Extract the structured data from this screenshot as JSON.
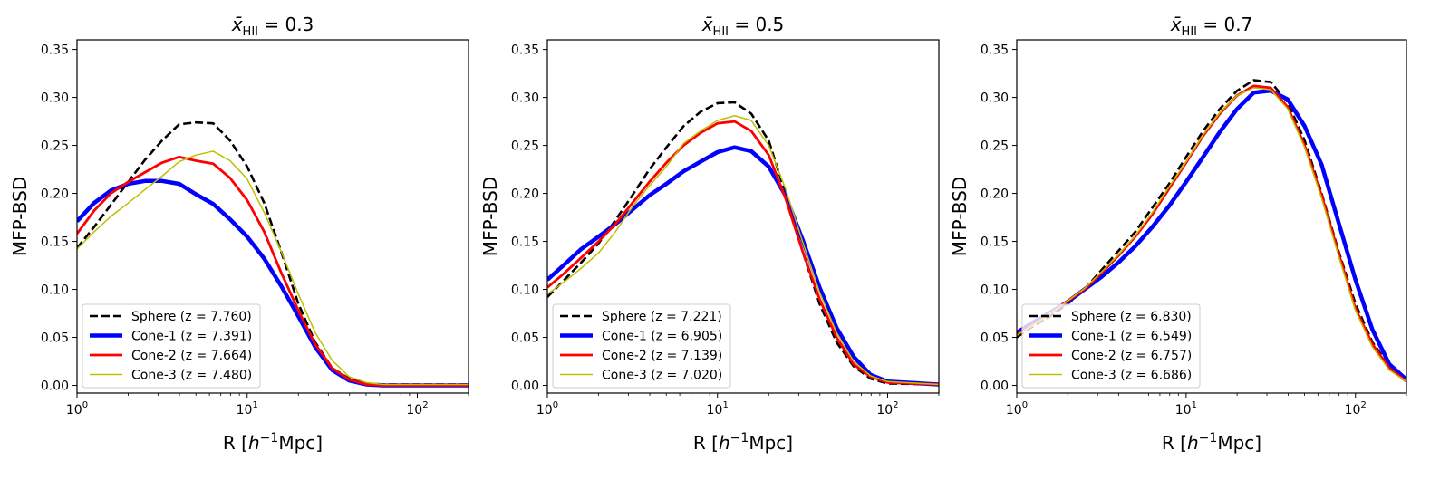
{
  "chart_data": [
    {
      "type": "line",
      "title_prefix": "x̄",
      "title_subscript": "HII",
      "title_value": " = 0.3",
      "xlabel_main": "R [",
      "xlabel_unit": "h",
      "xlabel_exp": "−1",
      "xlabel_end": "Mpc]",
      "ylabel": "MFP-BSD",
      "x_scale": "log",
      "xlim": [
        1,
        200
      ],
      "ylim": [
        -0.008,
        0.36
      ],
      "yticks": [
        "0.00",
        "0.05",
        "0.10",
        "0.15",
        "0.20",
        "0.25",
        "0.30",
        "0.35"
      ],
      "xticks": [
        {
          "base": "10",
          "exp": "0"
        },
        {
          "base": "10",
          "exp": "1"
        },
        {
          "base": "10",
          "exp": "2"
        }
      ],
      "grid": false,
      "legend_position": "lower-left",
      "series": [
        {
          "name": "Sphere (z = 7.760)",
          "color": "#000000",
          "style": "dashed",
          "width": 2.6,
          "x": [
            1,
            1.26,
            1.58,
            2,
            2.51,
            3.16,
            3.98,
            5.01,
            6.31,
            7.94,
            10,
            12.6,
            15.8,
            20,
            25.1,
            31.6,
            39.8,
            50.1,
            63.1,
            79.4,
            100,
            200
          ],
          "y": [
            0.143,
            0.165,
            0.188,
            0.212,
            0.235,
            0.255,
            0.272,
            0.274,
            0.273,
            0.255,
            0.228,
            0.19,
            0.14,
            0.085,
            0.045,
            0.018,
            0.007,
            0.002,
            0.001,
            0.001,
            0.001,
            0.001
          ]
        },
        {
          "name": "Cone-1 (z = 7.391)",
          "color": "#0000ff",
          "style": "solid",
          "width": 4.5,
          "x": [
            1,
            1.26,
            1.58,
            2,
            2.51,
            3.16,
            3.98,
            5.01,
            6.31,
            7.94,
            10,
            12.6,
            15.8,
            20,
            25.1,
            31.6,
            39.8,
            50.1,
            63.1,
            79.4,
            100,
            200
          ],
          "y": [
            0.171,
            0.19,
            0.203,
            0.21,
            0.213,
            0.213,
            0.21,
            0.199,
            0.189,
            0.173,
            0.155,
            0.132,
            0.104,
            0.072,
            0.04,
            0.016,
            0.005,
            0.001,
            0,
            0,
            0,
            0
          ]
        },
        {
          "name": "Cone-2 (z = 7.664)",
          "color": "#ff0000",
          "style": "solid",
          "width": 2.8,
          "x": [
            1,
            1.26,
            1.58,
            2,
            2.51,
            3.16,
            3.98,
            5.01,
            6.31,
            7.94,
            10,
            12.6,
            15.8,
            20,
            25.1,
            31.6,
            39.8,
            50.1,
            63.1,
            79.4,
            100,
            200
          ],
          "y": [
            0.158,
            0.182,
            0.2,
            0.212,
            0.222,
            0.232,
            0.238,
            0.234,
            0.231,
            0.216,
            0.193,
            0.16,
            0.118,
            0.078,
            0.043,
            0.018,
            0.006,
            0.001,
            0,
            0,
            0,
            0
          ]
        },
        {
          "name": "Cone-3 (z = 7.480)",
          "color": "#bfbf00",
          "style": "solid",
          "width": 1.5,
          "x": [
            1,
            1.26,
            1.58,
            2,
            2.51,
            3.16,
            3.98,
            5.01,
            6.31,
            7.94,
            10,
            12.6,
            15.8,
            20,
            25.1,
            31.6,
            39.8,
            50.1,
            63.1,
            79.4,
            100,
            200
          ],
          "y": [
            0.142,
            0.16,
            0.176,
            0.19,
            0.204,
            0.218,
            0.233,
            0.24,
            0.244,
            0.234,
            0.215,
            0.18,
            0.14,
            0.095,
            0.055,
            0.026,
            0.009,
            0.003,
            0.001,
            0.001,
            0.001,
            0.001
          ]
        }
      ]
    },
    {
      "type": "line",
      "title_prefix": "x̄",
      "title_subscript": "HII",
      "title_value": " = 0.5",
      "xlabel_main": "R [",
      "xlabel_unit": "h",
      "xlabel_exp": "−1",
      "xlabel_end": "Mpc]",
      "ylabel": "MFP-BSD",
      "x_scale": "log",
      "xlim": [
        1,
        200
      ],
      "ylim": [
        -0.008,
        0.36
      ],
      "yticks": [
        "0.00",
        "0.05",
        "0.10",
        "0.15",
        "0.20",
        "0.25",
        "0.30",
        "0.35"
      ],
      "xticks": [
        {
          "base": "10",
          "exp": "0"
        },
        {
          "base": "10",
          "exp": "1"
        },
        {
          "base": "10",
          "exp": "2"
        }
      ],
      "grid": false,
      "legend_position": "lower-left",
      "series": [
        {
          "name": "Sphere (z = 7.221)",
          "color": "#000000",
          "style": "dashed",
          "width": 2.6,
          "x": [
            1,
            1.26,
            1.58,
            2,
            2.51,
            3.16,
            3.98,
            5.01,
            6.31,
            7.94,
            10,
            12.6,
            15.8,
            20,
            25.1,
            31.6,
            39.8,
            50.1,
            63.1,
            79.4,
            100,
            200
          ],
          "y": [
            0.092,
            0.11,
            0.128,
            0.148,
            0.172,
            0.198,
            0.225,
            0.248,
            0.27,
            0.285,
            0.294,
            0.295,
            0.283,
            0.255,
            0.2,
            0.14,
            0.085,
            0.045,
            0.02,
            0.007,
            0.002,
            0.001
          ]
        },
        {
          "name": "Cone-1 (z = 6.905)",
          "color": "#0000ff",
          "style": "solid",
          "width": 4.5,
          "x": [
            1,
            1.26,
            1.58,
            2,
            2.51,
            3.16,
            3.98,
            5.01,
            6.31,
            7.94,
            10,
            12.6,
            15.8,
            20,
            25.1,
            31.6,
            39.8,
            50.1,
            63.1,
            79.4,
            100,
            200
          ],
          "y": [
            0.11,
            0.126,
            0.142,
            0.155,
            0.168,
            0.183,
            0.198,
            0.21,
            0.223,
            0.233,
            0.243,
            0.248,
            0.244,
            0.228,
            0.198,
            0.152,
            0.102,
            0.06,
            0.03,
            0.011,
            0.004,
            0.001
          ]
        },
        {
          "name": "Cone-2 (z = 7.139)",
          "color": "#ff0000",
          "style": "solid",
          "width": 2.8,
          "x": [
            1,
            1.26,
            1.58,
            2,
            2.51,
            3.16,
            3.98,
            5.01,
            6.31,
            7.94,
            10,
            12.6,
            15.8,
            20,
            25.1,
            31.6,
            39.8,
            50.1,
            63.1,
            79.4,
            100,
            200
          ],
          "y": [
            0.102,
            0.117,
            0.133,
            0.15,
            0.168,
            0.19,
            0.212,
            0.232,
            0.25,
            0.263,
            0.273,
            0.275,
            0.265,
            0.24,
            0.195,
            0.14,
            0.09,
            0.05,
            0.022,
            0.009,
            0.003,
            0.001
          ]
        },
        {
          "name": "Cone-3 (z = 7.020)",
          "color": "#bfbf00",
          "style": "solid",
          "width": 1.5,
          "x": [
            1,
            1.26,
            1.58,
            2,
            2.51,
            3.16,
            3.98,
            5.01,
            6.31,
            7.94,
            10,
            12.6,
            15.8,
            20,
            25.1,
            31.6,
            39.8,
            50.1,
            63.1,
            79.4,
            100,
            200
          ],
          "y": [
            0.095,
            0.108,
            0.122,
            0.138,
            0.16,
            0.186,
            0.208,
            0.228,
            0.252,
            0.265,
            0.276,
            0.281,
            0.276,
            0.25,
            0.205,
            0.15,
            0.097,
            0.055,
            0.025,
            0.01,
            0.004,
            0.001
          ]
        }
      ]
    },
    {
      "type": "line",
      "title_prefix": "x̄",
      "title_subscript": "HII",
      "title_value": " = 0.7",
      "xlabel_main": "R [",
      "xlabel_unit": "h",
      "xlabel_exp": "−1",
      "xlabel_end": "Mpc]",
      "ylabel": "MFP-BSD",
      "x_scale": "log",
      "xlim": [
        1,
        200
      ],
      "ylim": [
        -0.008,
        0.36
      ],
      "yticks": [
        "0.00",
        "0.05",
        "0.10",
        "0.15",
        "0.20",
        "0.25",
        "0.30",
        "0.35"
      ],
      "xticks": [
        {
          "base": "10",
          "exp": "0"
        },
        {
          "base": "10",
          "exp": "1"
        },
        {
          "base": "10",
          "exp": "2"
        }
      ],
      "grid": false,
      "legend_position": "lower-left",
      "series": [
        {
          "name": "Sphere (z = 6.830)",
          "color": "#000000",
          "style": "dashed",
          "width": 2.6,
          "x": [
            1,
            1.26,
            1.58,
            2,
            2.51,
            3.16,
            3.98,
            5.01,
            6.31,
            7.94,
            10,
            12.6,
            15.8,
            20,
            25.1,
            31.6,
            39.8,
            50.1,
            63.1,
            79.4,
            100,
            125.9,
            158.5,
            200
          ],
          "y": [
            0.05,
            0.062,
            0.072,
            0.085,
            0.1,
            0.12,
            0.14,
            0.16,
            0.185,
            0.21,
            0.238,
            0.265,
            0.288,
            0.307,
            0.318,
            0.316,
            0.295,
            0.255,
            0.2,
            0.14,
            0.085,
            0.045,
            0.02,
            0.005
          ]
        },
        {
          "name": "Cone-1 (z = 6.549)",
          "color": "#0000ff",
          "style": "solid",
          "width": 4.5,
          "x": [
            1,
            1.26,
            1.58,
            2,
            2.51,
            3.16,
            3.98,
            5.01,
            6.31,
            7.94,
            10,
            12.6,
            15.8,
            20,
            25.1,
            31.6,
            39.8,
            50.1,
            63.1,
            79.4,
            100,
            125.9,
            158.5,
            200
          ],
          "y": [
            0.055,
            0.066,
            0.076,
            0.087,
            0.1,
            0.113,
            0.128,
            0.145,
            0.165,
            0.187,
            0.212,
            0.238,
            0.264,
            0.288,
            0.305,
            0.307,
            0.298,
            0.27,
            0.23,
            0.17,
            0.11,
            0.058,
            0.022,
            0.006
          ]
        },
        {
          "name": "Cone-2 (z = 6.757)",
          "color": "#ff0000",
          "style": "solid",
          "width": 2.8,
          "x": [
            1,
            1.26,
            1.58,
            2,
            2.51,
            3.16,
            3.98,
            5.01,
            6.31,
            7.94,
            10,
            12.6,
            15.8,
            20,
            25.1,
            31.6,
            39.8,
            50.1,
            63.1,
            79.4,
            100,
            125.9,
            158.5,
            200
          ],
          "y": [
            0.053,
            0.064,
            0.075,
            0.088,
            0.1,
            0.117,
            0.135,
            0.155,
            0.178,
            0.205,
            0.232,
            0.26,
            0.283,
            0.302,
            0.312,
            0.31,
            0.29,
            0.25,
            0.198,
            0.138,
            0.08,
            0.043,
            0.018,
            0.004
          ]
        },
        {
          "name": "Cone-3 (z = 6.686)",
          "color": "#bfbf00",
          "style": "solid",
          "width": 1.5,
          "x": [
            1,
            1.26,
            1.58,
            2,
            2.51,
            3.16,
            3.98,
            5.01,
            6.31,
            7.94,
            10,
            12.6,
            15.8,
            20,
            25.1,
            31.6,
            39.8,
            50.1,
            63.1,
            79.4,
            100,
            125.9,
            158.5,
            200
          ],
          "y": [
            0.052,
            0.063,
            0.075,
            0.088,
            0.101,
            0.118,
            0.136,
            0.156,
            0.18,
            0.207,
            0.233,
            0.261,
            0.284,
            0.302,
            0.31,
            0.308,
            0.288,
            0.248,
            0.195,
            0.135,
            0.078,
            0.04,
            0.016,
            0.004
          ]
        }
      ]
    }
  ]
}
